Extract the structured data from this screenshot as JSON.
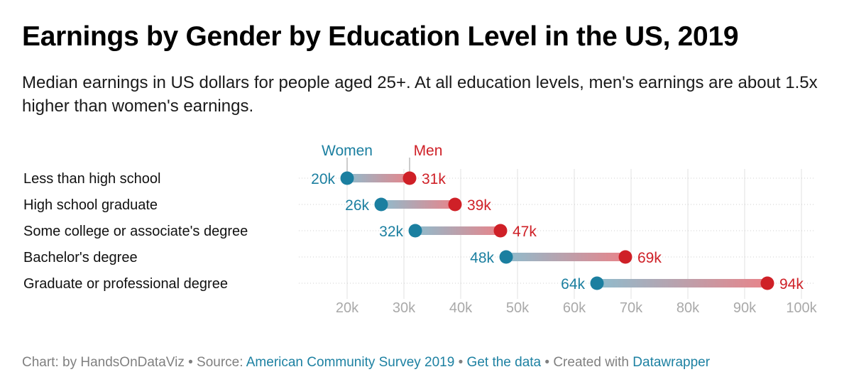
{
  "title": "Earnings by Gender by Education Level in the US, 2019",
  "subtitle": "Median earnings in US dollars for people aged 25+. At all education levels, men's earnings are about 1.5x higher than women's earnings.",
  "footer": {
    "prefix": "Chart: by HandsOnDataViz • Source: ",
    "source": "American Community Survey 2019",
    "sep1": " • ",
    "data_link": "Get the data",
    "sep2": " • Created with ",
    "tool": "Datawrapper"
  },
  "colors": {
    "women": "#1b7fa0",
    "men": "#cf2027",
    "grid": "#e0e0e0",
    "tick": "#a9a9a9"
  },
  "chart_data": {
    "type": "dot-range",
    "categories": [
      "Less than high school",
      "High school graduate",
      "Some college or associate's degree",
      "Bachelor's degree",
      "Graduate or professional degree"
    ],
    "series": [
      {
        "name": "Women",
        "values": [
          20000,
          26000,
          32000,
          48000,
          64000
        ],
        "labels": [
          "20k",
          "26k",
          "32k",
          "48k",
          "64k"
        ]
      },
      {
        "name": "Men",
        "values": [
          31000,
          39000,
          47000,
          69000,
          94000
        ],
        "labels": [
          "31k",
          "39k",
          "47k",
          "69k",
          "94k"
        ]
      }
    ],
    "xlim": [
      20000,
      100000
    ],
    "xticks": [
      20000,
      30000,
      40000,
      50000,
      60000,
      70000,
      80000,
      90000,
      100000
    ],
    "xtick_labels": [
      "20k",
      "30k",
      "40k",
      "50k",
      "60k",
      "70k",
      "80k",
      "90k",
      "100k"
    ],
    "grid": true,
    "legend": "inline labels above first row"
  }
}
